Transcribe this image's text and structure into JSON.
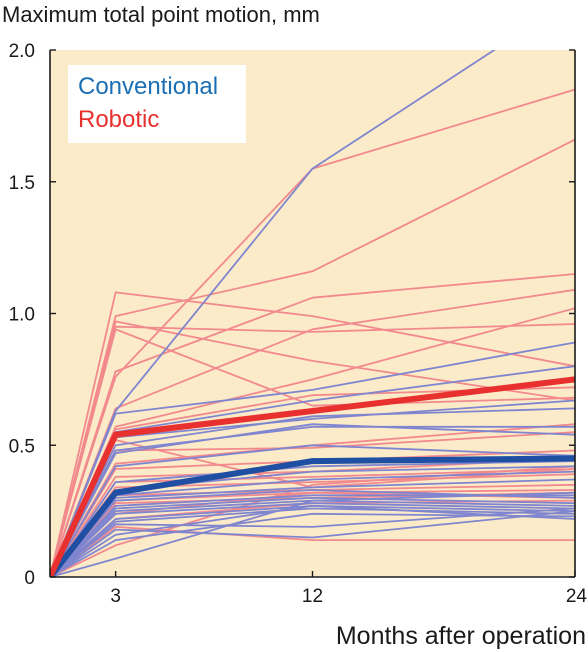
{
  "chart_data": {
    "type": "line",
    "title": "",
    "ylabel": "Maximum total point motion, mm",
    "xlabel": "Months after operation",
    "x": [
      0,
      3,
      12,
      24
    ],
    "x_ticks": [
      "3",
      "12",
      "24"
    ],
    "xlim": [
      0,
      24
    ],
    "ylim": [
      0,
      2.0
    ],
    "y_ticks": [
      "0",
      "0.5",
      "1.0",
      "1.5",
      "2.0"
    ],
    "grid": false,
    "legend": {
      "position": "top-left",
      "entries": [
        "Conventional",
        "Robotic"
      ]
    },
    "colors": {
      "background": "#fcebc9",
      "conventional_mean": "#1f4fa3",
      "conventional_individual": "#7f86cf",
      "robotic_mean": "#e8302e",
      "robotic_individual": "#f28a8d",
      "legend_conventional": "#1a6fb5",
      "legend_robotic": "#e8302e"
    },
    "series": [
      {
        "name": "Conventional",
        "group": "conventional",
        "mean": true,
        "values": [
          0,
          0.32,
          0.44,
          0.45
        ]
      },
      {
        "name": "Robotic",
        "group": "robotic",
        "mean": true,
        "values": [
          0,
          0.54,
          0.63,
          0.75
        ]
      },
      {
        "group": "conventional",
        "values": [
          0,
          0.63,
          1.55,
          2.2
        ]
      },
      {
        "group": "conventional",
        "values": [
          0,
          0.62,
          0.71,
          0.89
        ]
      },
      {
        "group": "conventional",
        "values": [
          0,
          0.55,
          0.67,
          0.8
        ]
      },
      {
        "group": "conventional",
        "values": [
          0,
          0.53,
          0.6,
          0.67
        ]
      },
      {
        "group": "conventional",
        "values": [
          0,
          0.5,
          0.61,
          0.64
        ]
      },
      {
        "group": "conventional",
        "values": [
          0,
          0.48,
          0.57,
          0.57
        ]
      },
      {
        "group": "conventional",
        "values": [
          0,
          0.47,
          0.58,
          0.54
        ]
      },
      {
        "group": "conventional",
        "values": [
          0,
          0.42,
          0.5,
          0.46
        ]
      },
      {
        "group": "conventional",
        "values": [
          0,
          0.36,
          0.42,
          0.44
        ]
      },
      {
        "group": "conventional",
        "values": [
          0,
          0.33,
          0.4,
          0.42
        ]
      },
      {
        "group": "conventional",
        "values": [
          0,
          0.31,
          0.37,
          0.4
        ]
      },
      {
        "group": "conventional",
        "values": [
          0,
          0.3,
          0.34,
          0.37
        ]
      },
      {
        "group": "conventional",
        "values": [
          0,
          0.29,
          0.33,
          0.3
        ]
      },
      {
        "group": "conventional",
        "values": [
          0,
          0.27,
          0.31,
          0.31
        ]
      },
      {
        "group": "conventional",
        "values": [
          0,
          0.26,
          0.3,
          0.28
        ]
      },
      {
        "group": "conventional",
        "values": [
          0,
          0.25,
          0.29,
          0.27
        ]
      },
      {
        "group": "conventional",
        "values": [
          0,
          0.24,
          0.28,
          0.26
        ]
      },
      {
        "group": "conventional",
        "values": [
          0,
          0.22,
          0.27,
          0.25
        ]
      },
      {
        "group": "conventional",
        "values": [
          0,
          0.21,
          0.26,
          0.24
        ]
      },
      {
        "group": "conventional",
        "values": [
          0,
          0.2,
          0.19,
          0.26
        ]
      },
      {
        "group": "conventional",
        "values": [
          0,
          0.18,
          0.15,
          0.25
        ]
      },
      {
        "group": "conventional",
        "values": [
          0,
          0.16,
          0.27,
          0.22
        ]
      },
      {
        "group": "conventional",
        "values": [
          0,
          0.14,
          0.24,
          0.23
        ]
      },
      {
        "group": "conventional",
        "values": [
          0,
          0.07,
          0.29,
          0.32
        ]
      },
      {
        "group": "robotic",
        "values": [
          0,
          1.08,
          0.99,
          0.8
        ]
      },
      {
        "group": "robotic",
        "values": [
          0,
          0.99,
          1.16,
          1.66
        ]
      },
      {
        "group": "robotic",
        "values": [
          0,
          0.97,
          0.82,
          0.67
        ]
      },
      {
        "group": "robotic",
        "values": [
          0,
          0.95,
          0.93,
          0.96
        ]
      },
      {
        "group": "robotic",
        "values": [
          0,
          0.94,
          0.65,
          0.68
        ]
      },
      {
        "group": "robotic",
        "values": [
          0,
          0.78,
          1.06,
          1.15
        ]
      },
      {
        "group": "robotic",
        "values": [
          0,
          0.76,
          1.55,
          1.85
        ]
      },
      {
        "group": "robotic",
        "values": [
          0,
          0.64,
          0.94,
          1.09
        ]
      },
      {
        "group": "robotic",
        "values": [
          0,
          0.57,
          0.75,
          1.02
        ]
      },
      {
        "group": "robotic",
        "values": [
          0,
          0.56,
          0.69,
          0.72
        ]
      },
      {
        "group": "robotic",
        "values": [
          0,
          0.52,
          0.34,
          0.41
        ]
      },
      {
        "group": "robotic",
        "values": [
          0,
          0.48,
          0.49,
          0.55
        ]
      },
      {
        "group": "robotic",
        "values": [
          0,
          0.43,
          0.5,
          0.58
        ]
      },
      {
        "group": "robotic",
        "values": [
          0,
          0.41,
          0.44,
          0.48
        ]
      },
      {
        "group": "robotic",
        "values": [
          0,
          0.38,
          0.4,
          0.45
        ]
      },
      {
        "group": "robotic",
        "values": [
          0,
          0.36,
          0.38,
          0.41
        ]
      },
      {
        "group": "robotic",
        "values": [
          0,
          0.34,
          0.36,
          0.39
        ]
      },
      {
        "group": "robotic",
        "values": [
          0,
          0.31,
          0.33,
          0.35
        ]
      },
      {
        "group": "robotic",
        "values": [
          0,
          0.29,
          0.32,
          0.33
        ]
      },
      {
        "group": "robotic",
        "values": [
          0,
          0.28,
          0.3,
          0.32
        ]
      },
      {
        "group": "robotic",
        "values": [
          0,
          0.24,
          0.32,
          0.3
        ]
      },
      {
        "group": "robotic",
        "values": [
          0,
          0.22,
          0.28,
          0.29
        ]
      },
      {
        "group": "robotic",
        "values": [
          0,
          0.19,
          0.14,
          0.14
        ]
      },
      {
        "group": "robotic",
        "values": [
          0,
          0.12,
          0.35,
          0.42
        ]
      }
    ]
  }
}
